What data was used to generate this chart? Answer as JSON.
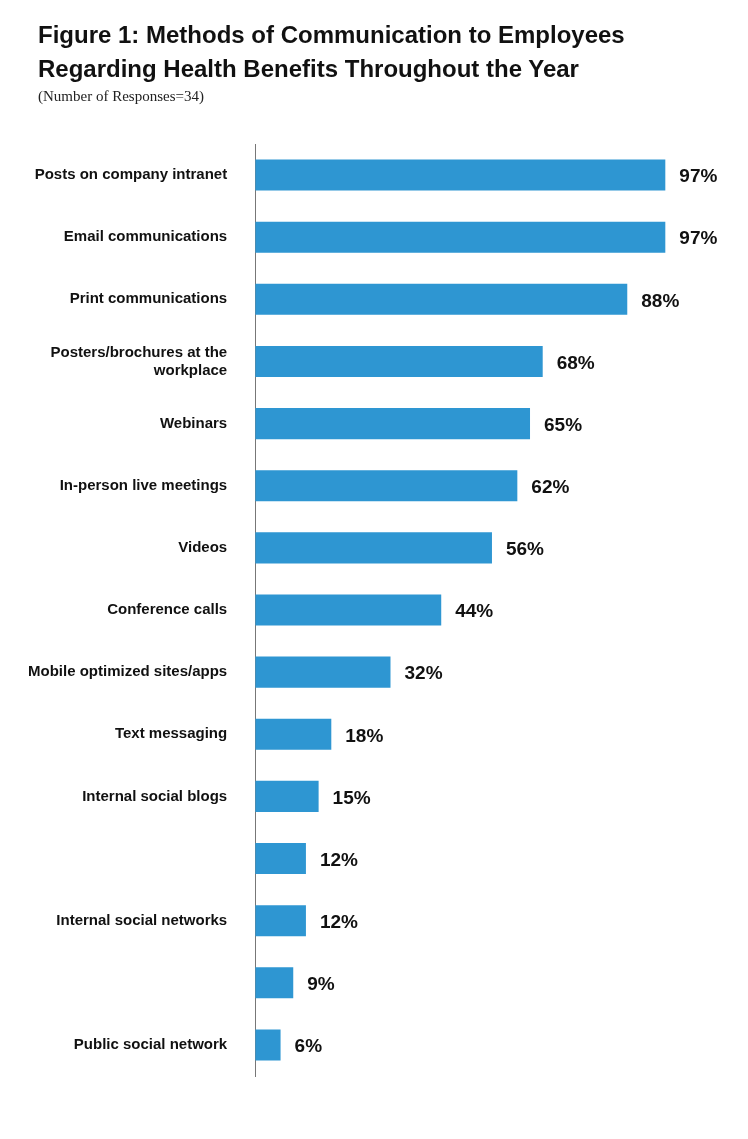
{
  "chart_data": {
    "type": "bar",
    "orientation": "horizontal",
    "title": "Figure 1: Methods of Communication to Employees Regarding Health Benefits Throughout the Year",
    "subtitle": "(Number of Responses=34)",
    "categories": [
      "Posts on company intranet",
      "Email communications",
      "Print communications",
      "Posters/brochures at the workplace",
      "Webinars",
      "In-person live meetings",
      "Videos",
      "Conference calls",
      "Mobile optimized sites/apps",
      "Text messaging",
      "Internal social blogs",
      null,
      "Internal social networks",
      null,
      "Public social network"
    ],
    "values": [
      97,
      97,
      88,
      68,
      65,
      62,
      56,
      44,
      32,
      18,
      15,
      12,
      12,
      9,
      6
    ],
    "value_labels": [
      "97%",
      "97%",
      "88%",
      "68%",
      "65%",
      "62%",
      "56%",
      "44%",
      "32%",
      "18%",
      "15%",
      "12%",
      "12%",
      "9%",
      "6%"
    ],
    "color": "#2e96d2",
    "tick_labels": "y"
  }
}
